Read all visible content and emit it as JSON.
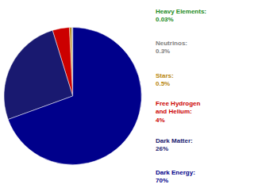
{
  "chart_data": {
    "type": "pie",
    "categories": [
      "Heavy Elements:\n0.03%",
      "Neutrinos:\n0.3%",
      "Stars:\n0.5%",
      "Free Hydrogen\nand Helium:\n4%",
      "Dark Matter:\n26%",
      "Dark Energy:\n70%"
    ],
    "values": [
      0.03,
      0.3,
      0.5,
      4.0,
      26.0,
      70.0
    ],
    "colors": [
      "#228B22",
      "#808080",
      "#B8860B",
      "#CC0000",
      "#191970",
      "#00008B"
    ]
  }
}
